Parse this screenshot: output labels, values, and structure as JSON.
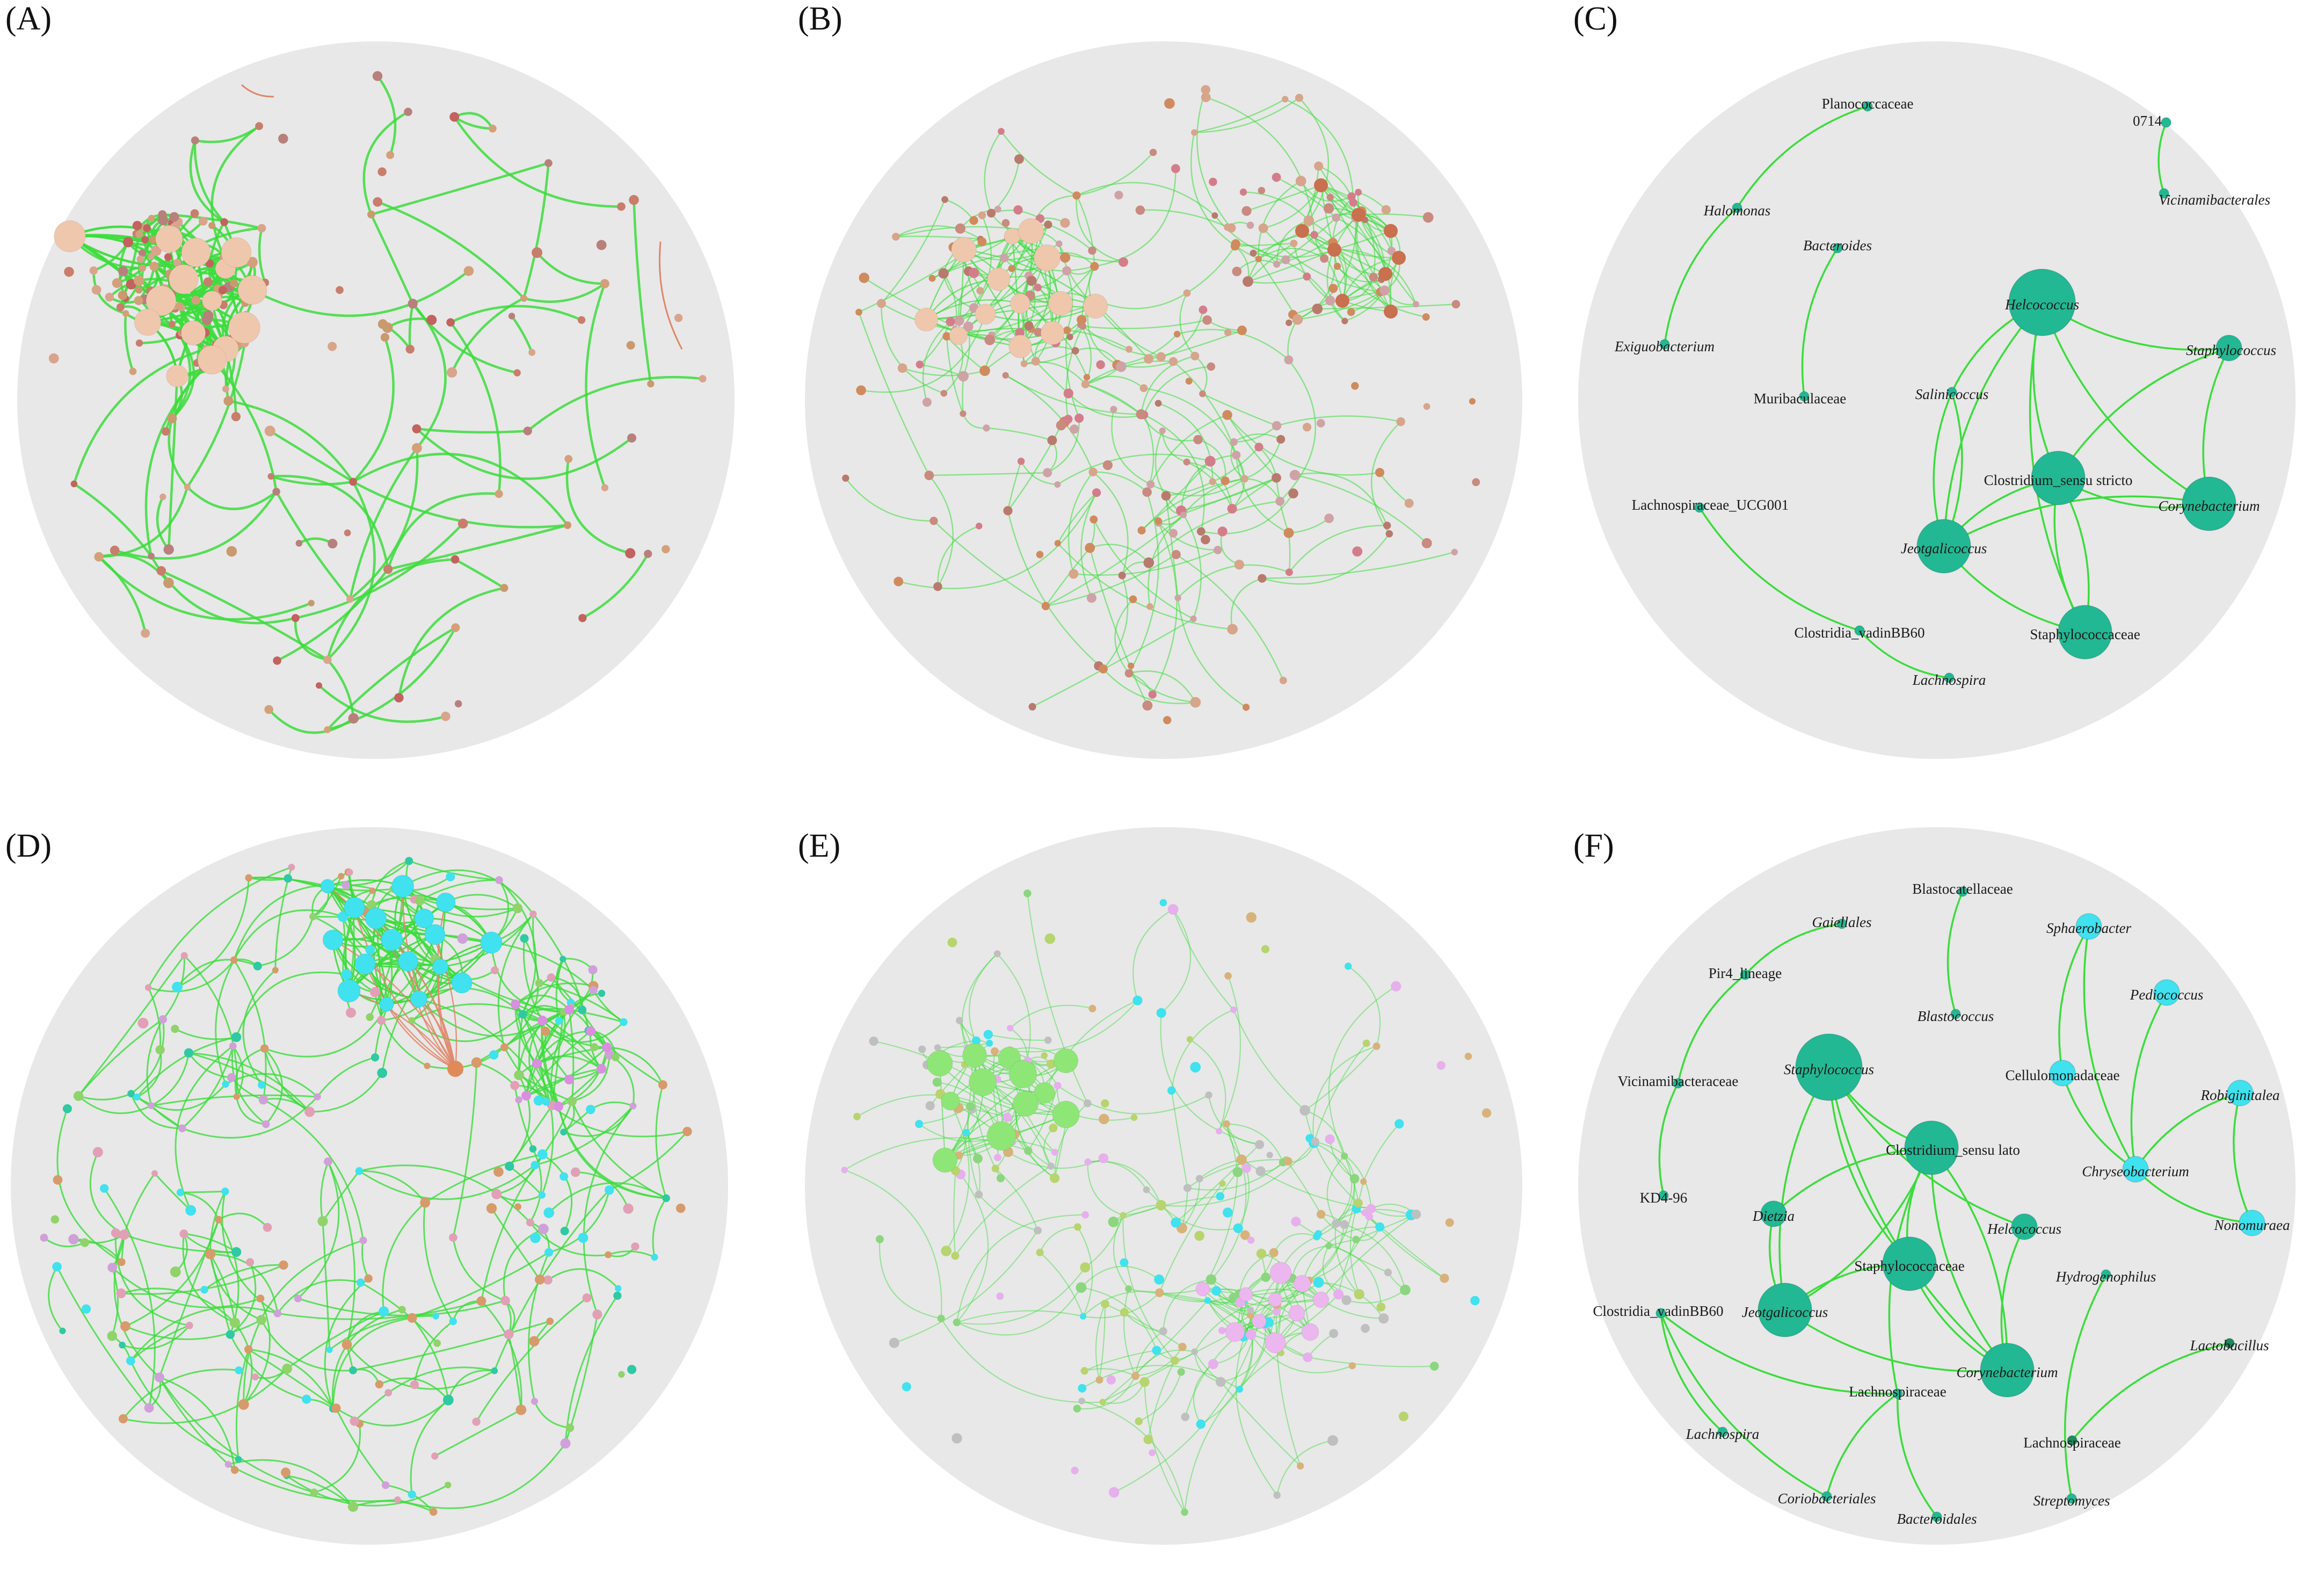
{
  "colors": {
    "background_circle": "#e8e8e8",
    "positive_edge": "#3cdc3c",
    "negative_edge": "#e0866a",
    "teal_node": "#22b893",
    "cyan_node": "#3fe2ee",
    "dark_green_node": "#1d8a5f"
  },
  "panels": [
    {
      "id": "A",
      "label": "(A)",
      "kind": "network",
      "palette": [
        "#d9a48c",
        "#c97d6c",
        "#c99a6e",
        "#b8807c",
        "#d4a07a",
        "#c3625e"
      ],
      "hub_color": "#efc7ad",
      "edge_opacity": 0.85,
      "neg_edges": 2
    },
    {
      "id": "B",
      "label": "(B)",
      "kind": "network",
      "palette": [
        "#d6a58c",
        "#c98a80",
        "#cf8b5e",
        "#d47d8a",
        "#b97a6e",
        "#cfa2a6"
      ],
      "hub_color": "#efc7ad",
      "edge_opacity": 0.55,
      "neg_edges": 0
    },
    {
      "id": "C",
      "label": "(C)",
      "kind": "named"
    },
    {
      "id": "D",
      "label": "(D)",
      "kind": "network",
      "palette": [
        "#3fe2ee",
        "#2fc9a3",
        "#d79a6a",
        "#d0a0d8",
        "#8fd36a",
        "#e1a0b5"
      ],
      "hub_color": "#3fe2ee",
      "edge_opacity": 0.8,
      "neg_edges": 14
    },
    {
      "id": "E",
      "label": "(E)",
      "kind": "network",
      "palette": [
        "#8bd67e",
        "#3fe2ee",
        "#e6b0ec",
        "#d7b27a",
        "#bfbfbf",
        "#b7d46e"
      ],
      "hub_color": "#8ee676",
      "edge_opacity": 0.45,
      "neg_edges": 0
    },
    {
      "id": "F",
      "label": "(F)",
      "kind": "named"
    }
  ],
  "network_C": {
    "nodes": [
      {
        "name": "Planococcaceae",
        "italic": false,
        "size": "s",
        "color": "teal"
      },
      {
        "name": "0714",
        "italic": false,
        "size": "s",
        "color": "teal"
      },
      {
        "name": "Halomonas",
        "italic": true,
        "size": "s",
        "color": "teal"
      },
      {
        "name": "Vicinamibacterales",
        "italic": true,
        "size": "s",
        "color": "teal"
      },
      {
        "name": "Bacteroides",
        "italic": true,
        "size": "s",
        "color": "teal"
      },
      {
        "name": "Helcococcus",
        "italic": true,
        "size": "xl",
        "color": "teal"
      },
      {
        "name": "Staphylococcus",
        "italic": true,
        "size": "m",
        "color": "teal"
      },
      {
        "name": "Exiguobacterium",
        "italic": true,
        "size": "s",
        "color": "teal"
      },
      {
        "name": "Muribaculaceae",
        "italic": false,
        "size": "s",
        "color": "teal"
      },
      {
        "name": "Salinicoccus",
        "italic": true,
        "size": "s",
        "color": "teal"
      },
      {
        "name": "Clostridium_sensu stricto",
        "italic": false,
        "size": "l",
        "color": "teal"
      },
      {
        "name": "Corynebacterium",
        "italic": true,
        "size": "l",
        "color": "teal"
      },
      {
        "name": "Lachnospiraceae_UCG001",
        "italic": false,
        "size": "s",
        "color": "teal"
      },
      {
        "name": "Jeotgalicoccus",
        "italic": true,
        "size": "l",
        "color": "teal"
      },
      {
        "name": "Staphylococcaceae",
        "italic": false,
        "size": "l",
        "color": "teal"
      },
      {
        "name": "Clostridia_vadinBB60",
        "italic": false,
        "size": "s",
        "color": "teal"
      },
      {
        "name": "Lachnospira",
        "italic": true,
        "size": "s",
        "color": "teal"
      }
    ]
  },
  "network_F": {
    "nodes": [
      {
        "name": "Blastocatellaceae",
        "italic": false,
        "size": "s",
        "color": "teal"
      },
      {
        "name": "Gaiellales",
        "italic": true,
        "size": "s",
        "color": "teal"
      },
      {
        "name": "Sphaerobacter",
        "italic": true,
        "size": "m",
        "color": "cyan"
      },
      {
        "name": "Pir4_lineage",
        "italic": false,
        "size": "s",
        "color": "teal"
      },
      {
        "name": "Pediococcus",
        "italic": true,
        "size": "m",
        "color": "cyan"
      },
      {
        "name": "Blastococcus",
        "italic": true,
        "size": "s",
        "color": "teal"
      },
      {
        "name": "Vicinamibacteraceae",
        "italic": false,
        "size": "s",
        "color": "teal"
      },
      {
        "name": "Staphylococcus",
        "italic": true,
        "size": "xl",
        "color": "teal"
      },
      {
        "name": "Cellulomonadaceae",
        "italic": false,
        "size": "m",
        "color": "cyan"
      },
      {
        "name": "Robiginitalea",
        "italic": true,
        "size": "m",
        "color": "cyan"
      },
      {
        "name": "Clostridium_sensu lato",
        "italic": false,
        "size": "l",
        "color": "teal"
      },
      {
        "name": "Chryseobacterium",
        "italic": true,
        "size": "m",
        "color": "cyan"
      },
      {
        "name": "KD4-96",
        "italic": false,
        "size": "s",
        "color": "teal"
      },
      {
        "name": "Dietzia",
        "italic": true,
        "size": "m",
        "color": "teal"
      },
      {
        "name": "Helcococcus",
        "italic": true,
        "size": "m",
        "color": "teal"
      },
      {
        "name": "Nonomuraea",
        "italic": true,
        "size": "m",
        "color": "cyan"
      },
      {
        "name": "Staphylococcaceae",
        "italic": false,
        "size": "l",
        "color": "teal"
      },
      {
        "name": "Hydrogenophilus",
        "italic": true,
        "size": "s",
        "color": "teal"
      },
      {
        "name": "Clostridia_vadinBB60",
        "italic": false,
        "size": "s",
        "color": "teal"
      },
      {
        "name": "Jeotgalicoccus",
        "italic": true,
        "size": "l",
        "color": "teal"
      },
      {
        "name": "Lactobacillus",
        "italic": true,
        "size": "s",
        "color": "dark"
      },
      {
        "name": "Corynebacterium",
        "italic": true,
        "size": "l",
        "color": "teal"
      },
      {
        "name": "Lachnospiraceae",
        "italic": false,
        "size": "s",
        "color": "teal"
      },
      {
        "name": "Lachnospira",
        "italic": true,
        "size": "s",
        "color": "teal"
      },
      {
        "name": "Lachnospiraceae",
        "italic": false,
        "size": "s",
        "color": "dark"
      },
      {
        "name": "Coriobacteriales",
        "italic": true,
        "size": "s",
        "color": "teal"
      },
      {
        "name": "Streptomyces",
        "italic": true,
        "size": "s",
        "color": "teal"
      },
      {
        "name": "Bacteroidales",
        "italic": true,
        "size": "s",
        "color": "teal"
      }
    ]
  }
}
